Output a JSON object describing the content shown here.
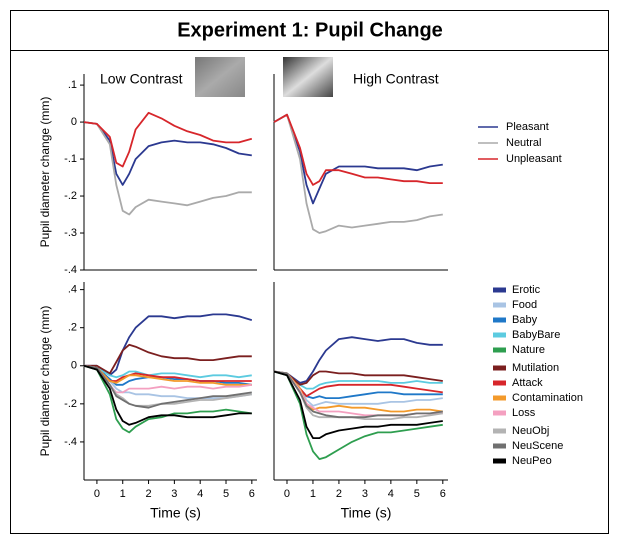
{
  "title": "Experiment 1: Pupil Change",
  "chart_data": [
    {
      "type": "line",
      "annotation": "Low Contrast",
      "ylabel": "Pupil diameter change (mm)",
      "legend": "right",
      "xlim": [
        -0.5,
        6.2
      ],
      "ylim": [
        -0.4,
        0.13
      ],
      "yticks": [
        {
          "value": 0.1,
          "label": ".1"
        },
        0,
        {
          "value": -0.1,
          "label": "-.1"
        },
        {
          "value": -0.2,
          "label": "-.2"
        },
        {
          "value": -0.3,
          "label": "-.3"
        },
        {
          "value": -0.4,
          "label": "-.4"
        }
      ],
      "x": [
        -0.5,
        0,
        0.5,
        0.75,
        1,
        1.25,
        1.5,
        2,
        2.5,
        3,
        3.5,
        4,
        4.5,
        5,
        5.5,
        6
      ],
      "series": [
        {
          "name": "Pleasant",
          "color": "#2b3990",
          "values": [
            0,
            -0.005,
            -0.05,
            -0.14,
            -0.17,
            -0.14,
            -0.1,
            -0.065,
            -0.055,
            -0.05,
            -0.055,
            -0.055,
            -0.06,
            -0.07,
            -0.085,
            -0.09
          ]
        },
        {
          "name": "Neutral",
          "color": "#aaaaaa",
          "values": [
            0,
            -0.005,
            -0.06,
            -0.17,
            -0.24,
            -0.25,
            -0.23,
            -0.21,
            -0.215,
            -0.22,
            -0.225,
            -0.215,
            -0.205,
            -0.2,
            -0.19,
            -0.19
          ]
        },
        {
          "name": "Unpleasant",
          "color": "#d7262b",
          "values": [
            0,
            -0.005,
            -0.04,
            -0.11,
            -0.12,
            -0.08,
            -0.02,
            0.025,
            0.01,
            -0.01,
            -0.025,
            -0.035,
            -0.05,
            -0.055,
            -0.055,
            -0.045
          ]
        }
      ]
    },
    {
      "type": "line",
      "annotation": "High Contrast",
      "xlim": [
        -0.5,
        6.2
      ],
      "ylim": [
        -0.4,
        0.13
      ],
      "x": [
        -0.5,
        0,
        0.5,
        0.75,
        1,
        1.25,
        1.5,
        2,
        2.5,
        3,
        3.5,
        4,
        4.5,
        5,
        5.5,
        6
      ],
      "series": [
        {
          "name": "Pleasant",
          "color": "#2b3990",
          "values": [
            0,
            0.02,
            -0.08,
            -0.17,
            -0.22,
            -0.18,
            -0.14,
            -0.12,
            -0.12,
            -0.12,
            -0.125,
            -0.125,
            -0.125,
            -0.13,
            -0.12,
            -0.115
          ]
        },
        {
          "name": "Neutral",
          "color": "#aaaaaa",
          "values": [
            0,
            0.02,
            -0.1,
            -0.22,
            -0.29,
            -0.3,
            -0.295,
            -0.28,
            -0.285,
            -0.28,
            -0.275,
            -0.27,
            -0.27,
            -0.265,
            -0.255,
            -0.25
          ]
        },
        {
          "name": "Unpleasant",
          "color": "#d7262b",
          "values": [
            0,
            0.02,
            -0.07,
            -0.14,
            -0.17,
            -0.16,
            -0.13,
            -0.13,
            -0.14,
            -0.15,
            -0.15,
            -0.155,
            -0.16,
            -0.16,
            -0.165,
            -0.165
          ]
        }
      ]
    },
    {
      "type": "line",
      "ylabel": "Pupil diameter change (mm)",
      "xlabel": "Time (s)",
      "legend": "right",
      "xlim": [
        -0.5,
        6.2
      ],
      "ylim": [
        -0.6,
        0.44
      ],
      "yticks": [
        {
          "value": 0.4,
          "label": ".4"
        },
        {
          "value": 0.2,
          "label": ".2"
        },
        0,
        {
          "value": -0.2,
          "label": "-.2"
        },
        {
          "value": -0.4,
          "label": "-.4"
        }
      ],
      "xticks": [
        0,
        1,
        2,
        3,
        4,
        5,
        6
      ],
      "x": [
        -0.5,
        0,
        0.5,
        0.75,
        1,
        1.25,
        1.5,
        2,
        2.5,
        3,
        3.5,
        4,
        4.5,
        5,
        5.5,
        6
      ],
      "series": [
        {
          "name": "Erotic",
          "color": "#2b3990",
          "values": [
            0,
            0,
            -0.05,
            -0.02,
            0.08,
            0.15,
            0.2,
            0.26,
            0.26,
            0.25,
            0.26,
            0.26,
            0.27,
            0.27,
            0.26,
            0.24
          ]
        },
        {
          "name": "Food",
          "color": "#a9c4e4",
          "values": [
            0,
            -0.01,
            -0.08,
            -0.12,
            -0.14,
            -0.14,
            -0.15,
            -0.15,
            -0.16,
            -0.16,
            -0.17,
            -0.17,
            -0.17,
            -0.17,
            -0.16,
            -0.15
          ]
        },
        {
          "name": "Baby",
          "color": "#1f78c8",
          "values": [
            0,
            -0.01,
            -0.07,
            -0.1,
            -0.1,
            -0.08,
            -0.07,
            -0.06,
            -0.06,
            -0.07,
            -0.07,
            -0.08,
            -0.08,
            -0.09,
            -0.09,
            -0.1
          ]
        },
        {
          "name": "BabyBare",
          "color": "#5ccbe0",
          "values": [
            0,
            -0.01,
            -0.05,
            -0.06,
            -0.05,
            -0.03,
            -0.03,
            -0.05,
            -0.04,
            -0.04,
            -0.05,
            -0.06,
            -0.05,
            -0.05,
            -0.06,
            -0.05
          ]
        },
        {
          "name": "Nature",
          "color": "#2e9e4f",
          "values": [
            0,
            -0.02,
            -0.15,
            -0.28,
            -0.33,
            -0.35,
            -0.32,
            -0.28,
            -0.27,
            -0.25,
            -0.25,
            -0.24,
            -0.24,
            -0.23,
            -0.24,
            -0.25
          ]
        },
        {
          "name": "Mutilation",
          "color": "#7b1f1f",
          "values": [
            0,
            0,
            -0.04,
            0.02,
            0.08,
            0.11,
            0.1,
            0.07,
            0.05,
            0.04,
            0.04,
            0.03,
            0.03,
            0.04,
            0.05,
            0.05
          ]
        },
        {
          "name": "Attack",
          "color": "#d7262b",
          "values": [
            0,
            -0.01,
            -0.08,
            -0.08,
            -0.06,
            -0.05,
            -0.04,
            -0.05,
            -0.06,
            -0.06,
            -0.07,
            -0.08,
            -0.08,
            -0.08,
            -0.08,
            -0.08
          ]
        },
        {
          "name": "Contamination",
          "color": "#f39a2b",
          "values": [
            0,
            -0.01,
            -0.08,
            -0.09,
            -0.07,
            -0.05,
            -0.05,
            -0.06,
            -0.07,
            -0.08,
            -0.08,
            -0.09,
            -0.09,
            -0.1,
            -0.1,
            -0.1
          ]
        },
        {
          "name": "Loss",
          "color": "#f4a0c0",
          "values": [
            0,
            -0.01,
            -0.1,
            -0.14,
            -0.14,
            -0.12,
            -0.12,
            -0.12,
            -0.11,
            -0.12,
            -0.11,
            -0.11,
            -0.12,
            -0.11,
            -0.11,
            -0.1
          ]
        },
        {
          "name": "NeuObj",
          "color": "#b3b3b3",
          "values": [
            0,
            -0.01,
            -0.1,
            -0.15,
            -0.17,
            -0.2,
            -0.21,
            -0.21,
            -0.2,
            -0.2,
            -0.19,
            -0.18,
            -0.18,
            -0.17,
            -0.16,
            -0.15
          ]
        },
        {
          "name": "NeuScene",
          "color": "#707070",
          "values": [
            0,
            -0.01,
            -0.1,
            -0.16,
            -0.18,
            -0.2,
            -0.21,
            -0.22,
            -0.2,
            -0.19,
            -0.18,
            -0.17,
            -0.16,
            -0.16,
            -0.15,
            -0.14
          ]
        },
        {
          "name": "NeuPeo",
          "color": "#000000",
          "values": [
            0,
            -0.02,
            -0.12,
            -0.23,
            -0.29,
            -0.31,
            -0.3,
            -0.27,
            -0.26,
            -0.26,
            -0.27,
            -0.27,
            -0.27,
            -0.26,
            -0.25,
            -0.25
          ]
        }
      ]
    },
    {
      "type": "line",
      "xlabel": "Time (s)",
      "xlim": [
        -0.5,
        6.2
      ],
      "ylim": [
        -0.6,
        0.44
      ],
      "xticks": [
        0,
        1,
        2,
        3,
        4,
        5,
        6
      ],
      "x": [
        -0.5,
        0,
        0.5,
        0.75,
        1,
        1.25,
        1.5,
        2,
        2.5,
        3,
        3.5,
        4,
        4.5,
        5,
        5.5,
        6
      ],
      "series": [
        {
          "name": "Erotic",
          "color": "#2b3990",
          "values": [
            -0.03,
            -0.04,
            -0.09,
            -0.08,
            -0.03,
            0.03,
            0.08,
            0.14,
            0.15,
            0.14,
            0.13,
            0.14,
            0.14,
            0.12,
            0.11,
            0.11
          ]
        },
        {
          "name": "Food",
          "color": "#a9c4e4",
          "values": [
            -0.03,
            -0.04,
            -0.12,
            -0.18,
            -0.21,
            -0.2,
            -0.19,
            -0.2,
            -0.2,
            -0.2,
            -0.2,
            -0.19,
            -0.19,
            -0.18,
            -0.18,
            -0.17
          ]
        },
        {
          "name": "Baby",
          "color": "#1f78c8",
          "values": [
            -0.03,
            -0.04,
            -0.12,
            -0.16,
            -0.17,
            -0.16,
            -0.17,
            -0.17,
            -0.16,
            -0.15,
            -0.14,
            -0.14,
            -0.15,
            -0.15,
            -0.15,
            -0.15
          ]
        },
        {
          "name": "BabyBare",
          "color": "#5ccbe0",
          "values": [
            -0.03,
            -0.04,
            -0.1,
            -0.12,
            -0.12,
            -0.1,
            -0.09,
            -0.08,
            -0.08,
            -0.08,
            -0.08,
            -0.09,
            -0.09,
            -0.08,
            -0.09,
            -0.09
          ]
        },
        {
          "name": "Nature",
          "color": "#2e9e4f",
          "values": [
            -0.03,
            -0.05,
            -0.2,
            -0.36,
            -0.45,
            -0.49,
            -0.48,
            -0.44,
            -0.4,
            -0.37,
            -0.35,
            -0.35,
            -0.34,
            -0.33,
            -0.32,
            -0.31
          ]
        },
        {
          "name": "Mutilation",
          "color": "#7b1f1f",
          "values": [
            -0.03,
            -0.04,
            -0.1,
            -0.09,
            -0.05,
            -0.03,
            -0.03,
            -0.04,
            -0.04,
            -0.05,
            -0.05,
            -0.05,
            -0.05,
            -0.06,
            -0.07,
            -0.08
          ]
        },
        {
          "name": "Attack",
          "color": "#d7262b",
          "values": [
            -0.03,
            -0.04,
            -0.12,
            -0.16,
            -0.14,
            -0.12,
            -0.11,
            -0.1,
            -0.1,
            -0.1,
            -0.1,
            -0.1,
            -0.11,
            -0.12,
            -0.13,
            -0.14
          ]
        },
        {
          "name": "Contamination",
          "color": "#f39a2b",
          "values": [
            -0.03,
            -0.04,
            -0.12,
            -0.2,
            -0.23,
            -0.22,
            -0.22,
            -0.21,
            -0.22,
            -0.22,
            -0.23,
            -0.24,
            -0.24,
            -0.23,
            -0.23,
            -0.24
          ]
        },
        {
          "name": "Loss",
          "color": "#f4a0c0",
          "values": [
            -0.03,
            -0.04,
            -0.13,
            -0.2,
            -0.22,
            -0.24,
            -0.24,
            -0.24,
            -0.25,
            -0.26,
            -0.26,
            -0.26,
            -0.26,
            -0.25,
            -0.25,
            -0.25
          ]
        },
        {
          "name": "NeuObj",
          "color": "#b3b3b3",
          "values": [
            -0.03,
            -0.04,
            -0.14,
            -0.22,
            -0.26,
            -0.27,
            -0.27,
            -0.27,
            -0.27,
            -0.28,
            -0.28,
            -0.28,
            -0.27,
            -0.27,
            -0.26,
            -0.25
          ]
        },
        {
          "name": "NeuScene",
          "color": "#707070",
          "values": [
            -0.03,
            -0.04,
            -0.14,
            -0.21,
            -0.24,
            -0.25,
            -0.26,
            -0.27,
            -0.27,
            -0.27,
            -0.26,
            -0.26,
            -0.26,
            -0.25,
            -0.25,
            -0.24
          ]
        },
        {
          "name": "NeuPeo",
          "color": "#000000",
          "values": [
            -0.03,
            -0.05,
            -0.18,
            -0.32,
            -0.38,
            -0.38,
            -0.36,
            -0.34,
            -0.33,
            -0.32,
            -0.32,
            -0.31,
            -0.31,
            -0.31,
            -0.3,
            -0.29
          ]
        }
      ]
    }
  ]
}
